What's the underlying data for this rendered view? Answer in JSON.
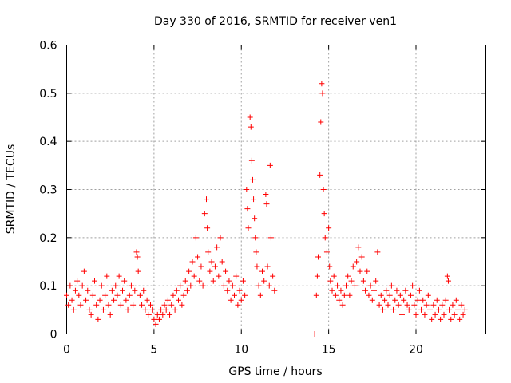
{
  "chart_data": {
    "type": "scatter",
    "title": "Day 330 of 2016, SRMTID for receiver ven1",
    "xlabel": "GPS time / hours",
    "ylabel": "SRMTID / TECUs",
    "xlim": [
      0,
      24
    ],
    "ylim": [
      0,
      0.6
    ],
    "xticks": [
      0,
      5,
      10,
      15,
      20
    ],
    "xtick_labels": [
      "0",
      "5",
      "10",
      "15",
      "20"
    ],
    "yticks": [
      0,
      0.1,
      0.2,
      0.3,
      0.4,
      0.5,
      0.6
    ],
    "ytick_labels": [
      "0",
      "0.1",
      "0.2",
      "0.3",
      "0.4",
      "0.5",
      "0.6"
    ],
    "grid": true,
    "marker": "+",
    "color": "#ff0000",
    "series": [
      {
        "name": "SRMTID",
        "points": [
          [
            0.0,
            0.08
          ],
          [
            0.1,
            0.06
          ],
          [
            0.2,
            0.1
          ],
          [
            0.3,
            0.07
          ],
          [
            0.4,
            0.05
          ],
          [
            0.5,
            0.09
          ],
          [
            0.6,
            0.11
          ],
          [
            0.7,
            0.08
          ],
          [
            0.8,
            0.06
          ],
          [
            0.9,
            0.1
          ],
          [
            1.0,
            0.13
          ],
          [
            1.1,
            0.07
          ],
          [
            1.2,
            0.09
          ],
          [
            1.3,
            0.05
          ],
          [
            1.4,
            0.04
          ],
          [
            1.5,
            0.08
          ],
          [
            1.6,
            0.11
          ],
          [
            1.7,
            0.06
          ],
          [
            1.8,
            0.03
          ],
          [
            1.9,
            0.07
          ],
          [
            2.0,
            0.1
          ],
          [
            2.1,
            0.05
          ],
          [
            2.2,
            0.08
          ],
          [
            2.3,
            0.12
          ],
          [
            2.4,
            0.06
          ],
          [
            2.5,
            0.04
          ],
          [
            2.6,
            0.09
          ],
          [
            2.7,
            0.07
          ],
          [
            2.8,
            0.1
          ],
          [
            2.9,
            0.08
          ],
          [
            3.0,
            0.12
          ],
          [
            3.1,
            0.06
          ],
          [
            3.2,
            0.09
          ],
          [
            3.3,
            0.11
          ],
          [
            3.4,
            0.07
          ],
          [
            3.5,
            0.05
          ],
          [
            3.6,
            0.08
          ],
          [
            3.7,
            0.1
          ],
          [
            3.8,
            0.06
          ],
          [
            3.9,
            0.09
          ],
          [
            4.0,
            0.17
          ],
          [
            4.05,
            0.16
          ],
          [
            4.1,
            0.13
          ],
          [
            4.2,
            0.08
          ],
          [
            4.3,
            0.06
          ],
          [
            4.4,
            0.09
          ],
          [
            4.5,
            0.05
          ],
          [
            4.6,
            0.07
          ],
          [
            4.7,
            0.04
          ],
          [
            4.8,
            0.06
          ],
          [
            4.9,
            0.05
          ],
          [
            5.0,
            0.03
          ],
          [
            5.1,
            0.02
          ],
          [
            5.2,
            0.04
          ],
          [
            5.3,
            0.03
          ],
          [
            5.4,
            0.05
          ],
          [
            5.5,
            0.04
          ],
          [
            5.6,
            0.06
          ],
          [
            5.7,
            0.05
          ],
          [
            5.8,
            0.07
          ],
          [
            5.9,
            0.04
          ],
          [
            6.0,
            0.06
          ],
          [
            6.1,
            0.08
          ],
          [
            6.2,
            0.05
          ],
          [
            6.3,
            0.09
          ],
          [
            6.4,
            0.07
          ],
          [
            6.5,
            0.1
          ],
          [
            6.6,
            0.06
          ],
          [
            6.7,
            0.08
          ],
          [
            6.8,
            0.11
          ],
          [
            6.9,
            0.09
          ],
          [
            7.0,
            0.13
          ],
          [
            7.1,
            0.1
          ],
          [
            7.2,
            0.15
          ],
          [
            7.3,
            0.12
          ],
          [
            7.4,
            0.2
          ],
          [
            7.5,
            0.16
          ],
          [
            7.6,
            0.11
          ],
          [
            7.7,
            0.14
          ],
          [
            7.8,
            0.1
          ],
          [
            7.9,
            0.25
          ],
          [
            8.0,
            0.28
          ],
          [
            8.05,
            0.22
          ],
          [
            8.1,
            0.17
          ],
          [
            8.2,
            0.13
          ],
          [
            8.3,
            0.15
          ],
          [
            8.4,
            0.11
          ],
          [
            8.5,
            0.14
          ],
          [
            8.6,
            0.18
          ],
          [
            8.7,
            0.12
          ],
          [
            8.8,
            0.2
          ],
          [
            8.9,
            0.15
          ],
          [
            9.0,
            0.1
          ],
          [
            9.1,
            0.13
          ],
          [
            9.2,
            0.09
          ],
          [
            9.3,
            0.11
          ],
          [
            9.4,
            0.07
          ],
          [
            9.5,
            0.1
          ],
          [
            9.6,
            0.08
          ],
          [
            9.7,
            0.12
          ],
          [
            9.8,
            0.06
          ],
          [
            9.9,
            0.09
          ],
          [
            10.0,
            0.07
          ],
          [
            10.1,
            0.11
          ],
          [
            10.2,
            0.08
          ],
          [
            10.3,
            0.3
          ],
          [
            10.35,
            0.26
          ],
          [
            10.4,
            0.22
          ],
          [
            10.5,
            0.45
          ],
          [
            10.55,
            0.43
          ],
          [
            10.6,
            0.36
          ],
          [
            10.65,
            0.32
          ],
          [
            10.7,
            0.28
          ],
          [
            10.75,
            0.24
          ],
          [
            10.8,
            0.2
          ],
          [
            10.85,
            0.17
          ],
          [
            10.9,
            0.14
          ],
          [
            11.0,
            0.1
          ],
          [
            11.1,
            0.08
          ],
          [
            11.2,
            0.13
          ],
          [
            11.3,
            0.11
          ],
          [
            11.4,
            0.29
          ],
          [
            11.45,
            0.27
          ],
          [
            11.5,
            0.14
          ],
          [
            11.6,
            0.1
          ],
          [
            11.65,
            0.35
          ],
          [
            11.7,
            0.2
          ],
          [
            11.8,
            0.12
          ],
          [
            11.9,
            0.09
          ],
          [
            14.2,
            0.0
          ],
          [
            14.3,
            0.08
          ],
          [
            14.35,
            0.12
          ],
          [
            14.4,
            0.16
          ],
          [
            14.5,
            0.33
          ],
          [
            14.55,
            0.44
          ],
          [
            14.6,
            0.52
          ],
          [
            14.65,
            0.5
          ],
          [
            14.7,
            0.3
          ],
          [
            14.75,
            0.25
          ],
          [
            14.8,
            0.2
          ],
          [
            14.9,
            0.17
          ],
          [
            15.0,
            0.22
          ],
          [
            15.05,
            0.14
          ],
          [
            15.1,
            0.11
          ],
          [
            15.2,
            0.09
          ],
          [
            15.3,
            0.12
          ],
          [
            15.4,
            0.08
          ],
          [
            15.5,
            0.1
          ],
          [
            15.6,
            0.07
          ],
          [
            15.7,
            0.09
          ],
          [
            15.8,
            0.06
          ],
          [
            15.9,
            0.08
          ],
          [
            16.0,
            0.1
          ],
          [
            16.1,
            0.12
          ],
          [
            16.2,
            0.08
          ],
          [
            16.3,
            0.11
          ],
          [
            16.4,
            0.14
          ],
          [
            16.5,
            0.1
          ],
          [
            16.6,
            0.15
          ],
          [
            16.7,
            0.18
          ],
          [
            16.8,
            0.13
          ],
          [
            16.9,
            0.16
          ],
          [
            17.0,
            0.11
          ],
          [
            17.1,
            0.09
          ],
          [
            17.2,
            0.13
          ],
          [
            17.3,
            0.08
          ],
          [
            17.4,
            0.1
          ],
          [
            17.5,
            0.07
          ],
          [
            17.6,
            0.09
          ],
          [
            17.7,
            0.11
          ],
          [
            17.8,
            0.17
          ],
          [
            17.9,
            0.06
          ],
          [
            18.0,
            0.08
          ],
          [
            18.1,
            0.05
          ],
          [
            18.2,
            0.07
          ],
          [
            18.3,
            0.09
          ],
          [
            18.4,
            0.06
          ],
          [
            18.5,
            0.08
          ],
          [
            18.6,
            0.1
          ],
          [
            18.7,
            0.05
          ],
          [
            18.8,
            0.07
          ],
          [
            18.9,
            0.09
          ],
          [
            19.0,
            0.06
          ],
          [
            19.1,
            0.08
          ],
          [
            19.2,
            0.04
          ],
          [
            19.3,
            0.07
          ],
          [
            19.4,
            0.09
          ],
          [
            19.5,
            0.06
          ],
          [
            19.6,
            0.05
          ],
          [
            19.7,
            0.08
          ],
          [
            19.8,
            0.1
          ],
          [
            19.9,
            0.06
          ],
          [
            20.0,
            0.04
          ],
          [
            20.1,
            0.07
          ],
          [
            20.2,
            0.09
          ],
          [
            20.3,
            0.05
          ],
          [
            20.4,
            0.07
          ],
          [
            20.5,
            0.04
          ],
          [
            20.6,
            0.06
          ],
          [
            20.7,
            0.08
          ],
          [
            20.8,
            0.05
          ],
          [
            20.9,
            0.03
          ],
          [
            21.0,
            0.06
          ],
          [
            21.1,
            0.04
          ],
          [
            21.2,
            0.07
          ],
          [
            21.3,
            0.05
          ],
          [
            21.4,
            0.03
          ],
          [
            21.5,
            0.06
          ],
          [
            21.6,
            0.04
          ],
          [
            21.7,
            0.07
          ],
          [
            21.8,
            0.12
          ],
          [
            21.85,
            0.11
          ],
          [
            21.9,
            0.05
          ],
          [
            22.0,
            0.03
          ],
          [
            22.1,
            0.06
          ],
          [
            22.2,
            0.04
          ],
          [
            22.3,
            0.07
          ],
          [
            22.4,
            0.05
          ],
          [
            22.5,
            0.03
          ],
          [
            22.6,
            0.06
          ],
          [
            22.7,
            0.04
          ],
          [
            22.8,
            0.05
          ]
        ]
      }
    ]
  }
}
